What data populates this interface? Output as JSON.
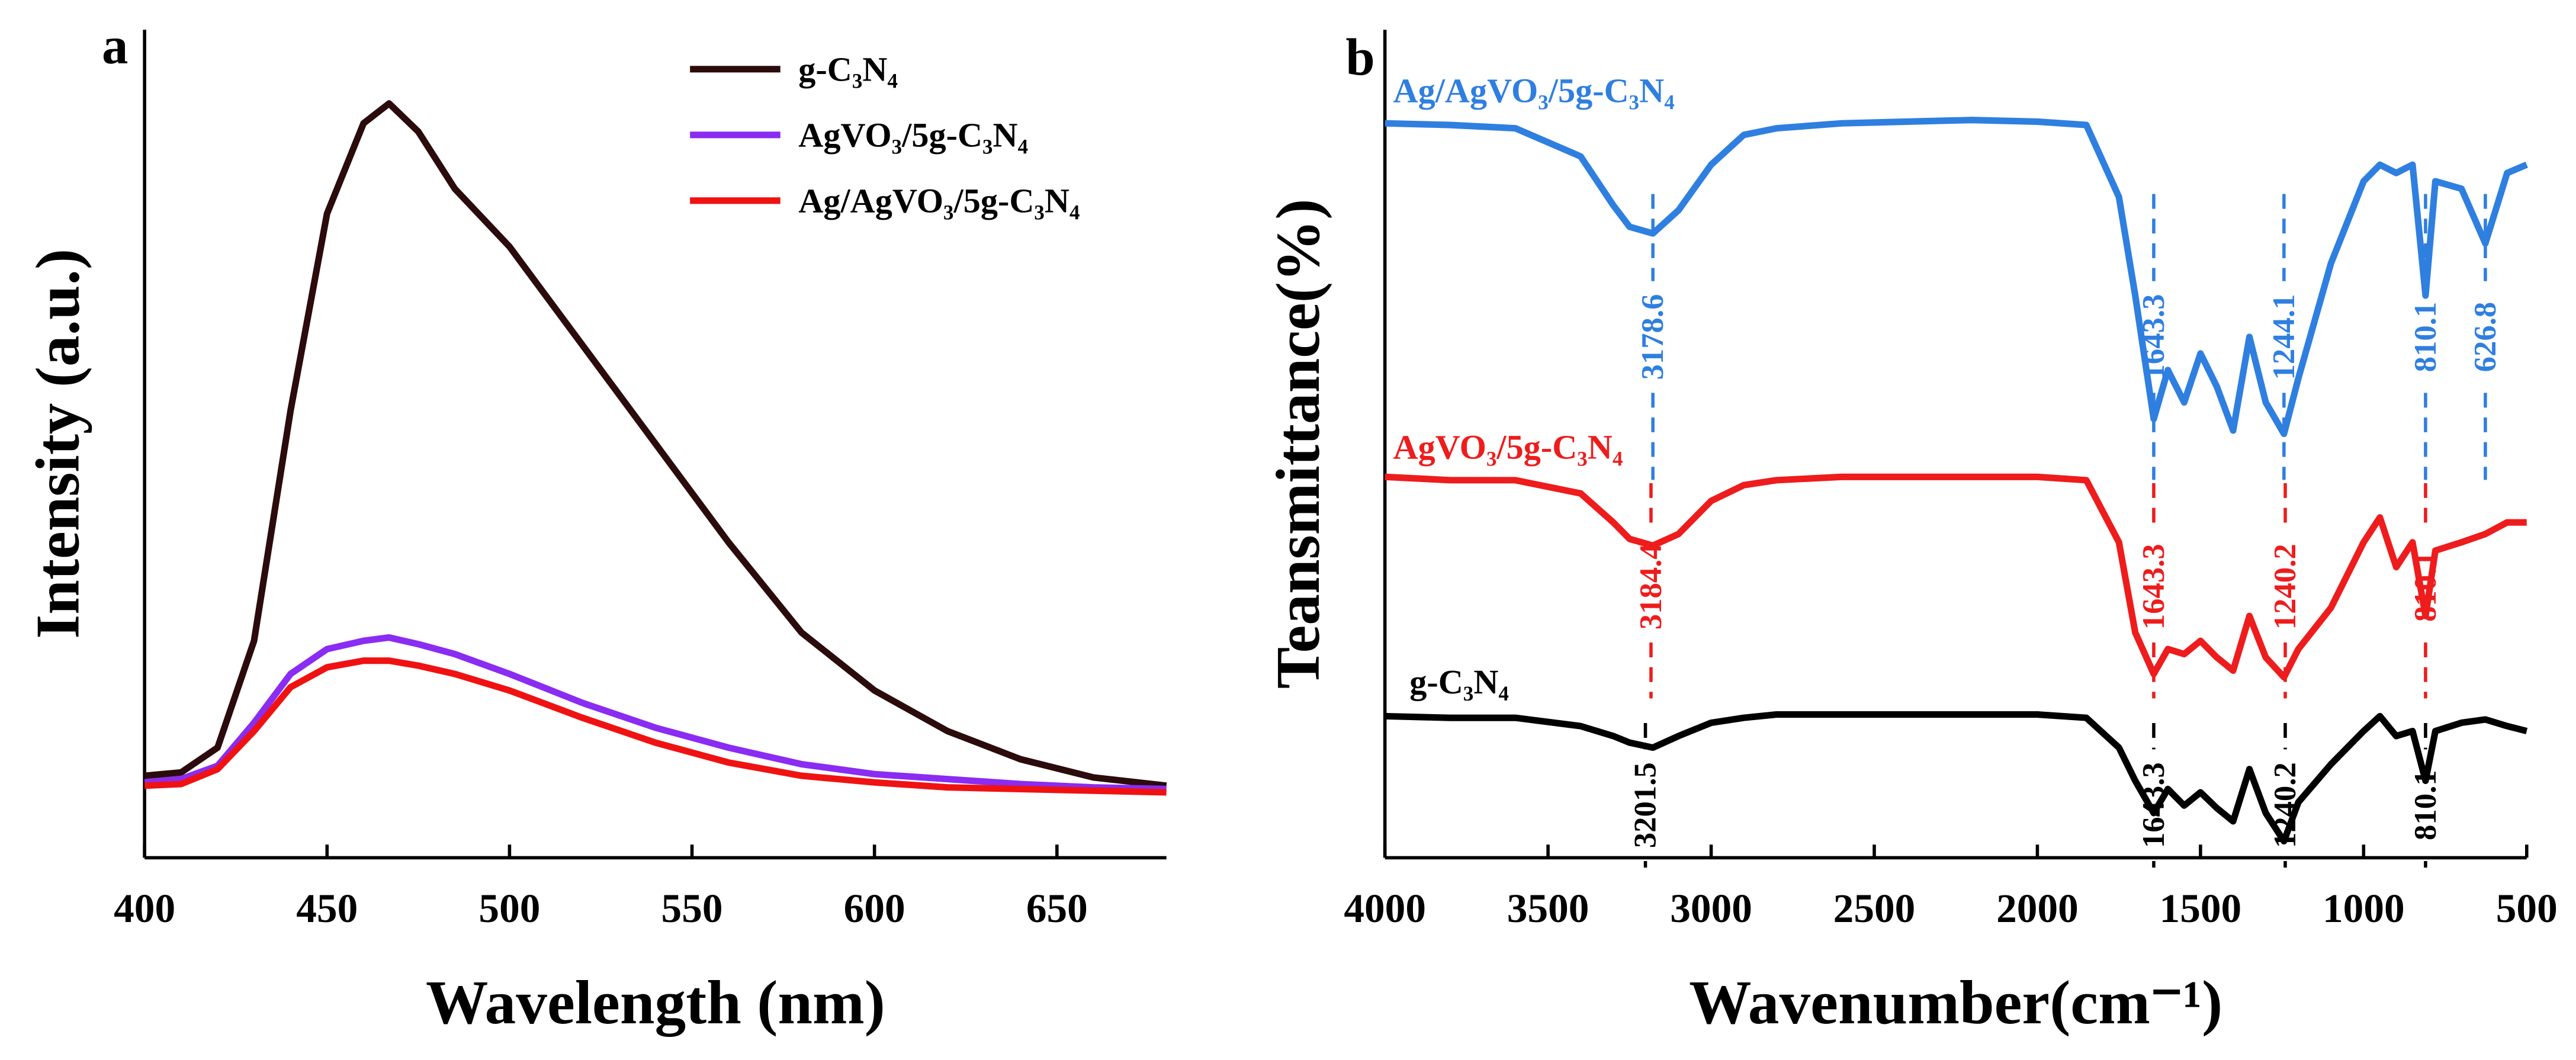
{
  "chart_data": [
    {
      "type": "line",
      "panel_label": "a",
      "x_label": "Wavelength (nm)",
      "y_label": "Intensity (a.u.)",
      "legend": "upper right",
      "x": [
        400,
        410,
        420,
        430,
        440,
        450,
        460,
        467,
        475,
        485,
        500,
        520,
        540,
        560,
        580,
        600,
        620,
        640,
        660,
        680
      ],
      "xlim": [
        400,
        680
      ],
      "xticks": [
        400,
        450,
        500,
        550,
        600,
        650
      ],
      "ylim": [
        0,
        100
      ],
      "series": [
        {
          "name": "g-C₃N₄",
          "color": "#2b0b0b",
          "values": [
            9.9,
            10.3,
            13.3,
            26.2,
            54.0,
            77.8,
            88.7,
            91.1,
            87.7,
            80.8,
            73.8,
            61.9,
            50.0,
            38.1,
            27.2,
            20.2,
            15.3,
            11.9,
            9.7,
            8.7
          ]
        },
        {
          "name": "AgVO₃/5g-C₃N₄",
          "color": "#8a2cf2",
          "values": [
            9.1,
            9.5,
            11.1,
            16.3,
            22.2,
            25.2,
            26.2,
            26.6,
            25.8,
            24.6,
            22.2,
            18.7,
            15.7,
            13.3,
            11.3,
            10.1,
            9.5,
            8.9,
            8.5,
            8.3
          ]
        },
        {
          "name": "Ag/AgVO₃/5g-C₃N₄",
          "color": "#f01212",
          "values": [
            8.7,
            8.9,
            10.7,
            15.3,
            20.6,
            23.0,
            23.8,
            23.8,
            23.2,
            22.2,
            20.2,
            16.9,
            13.9,
            11.5,
            9.9,
            9.1,
            8.5,
            8.3,
            8.1,
            7.9
          ]
        }
      ]
    },
    {
      "type": "line",
      "panel_label": "b",
      "x_label": "Wavenumber(cm⁻¹)",
      "y_label": "Teansmittance(%)",
      "legend": "inline",
      "x": [
        4000,
        3800,
        3600,
        3400,
        3300,
        3250,
        3178.6,
        3100,
        3000,
        2900,
        2800,
        2600,
        2400,
        2200,
        2000,
        1850,
        1750,
        1700,
        1643.3,
        1600,
        1550,
        1500,
        1450,
        1400,
        1350,
        1300,
        1244.1,
        1200,
        1100,
        1000,
        950,
        900,
        850,
        810.1,
        780,
        700,
        626.8,
        560,
        500
      ],
      "xlim": [
        4000,
        500
      ],
      "xticks": [
        4000,
        3500,
        3000,
        2500,
        2000,
        1500,
        1000,
        500
      ],
      "ylim": [
        0,
        100
      ],
      "series": [
        {
          "name": "Ag/AgVO₃/5g-C₃N₄",
          "color": "#2f7fe0",
          "annotations": [
            3178.6,
            1643.3,
            1244.1,
            810.1,
            626.8
          ],
          "values": [
            88.7,
            88.5,
            88.1,
            84.7,
            78.8,
            76.2,
            75.4,
            78.2,
            83.7,
            87.3,
            88.1,
            88.7,
            88.9,
            89.1,
            88.9,
            88.5,
            79.8,
            67.9,
            53.0,
            58.9,
            55.0,
            60.9,
            56.9,
            51.6,
            62.9,
            55.0,
            51.2,
            57.9,
            71.8,
            81.7,
            83.7,
            82.7,
            83.7,
            67.9,
            81.7,
            80.8,
            74.2,
            82.7,
            83.7
          ]
        },
        {
          "name": "AgVO₃/5g-C₃N₄",
          "color": "#ee1c1c",
          "annotations": [
            3184.4,
            1643.3,
            1240.2,
            810.1
          ],
          "values": [
            46.0,
            45.6,
            45.6,
            44.0,
            40.5,
            38.5,
            37.7,
            39.1,
            43.1,
            45.0,
            45.6,
            46.0,
            46.0,
            46.0,
            46.0,
            45.6,
            38.1,
            27.2,
            22.2,
            25.2,
            24.6,
            26.2,
            24.2,
            22.6,
            29.2,
            24.2,
            21.8,
            25.2,
            30.2,
            38.1,
            41.1,
            35.1,
            38.1,
            29.2,
            37.1,
            38.1,
            39.1,
            40.5,
            40.5
          ]
        },
        {
          "name": "g-C₃N₄",
          "color": "#000000",
          "annotations": [
            3201.5,
            1643.3,
            1240.2,
            810.1
          ],
          "values": [
            17.1,
            16.9,
            16.9,
            15.9,
            14.7,
            13.9,
            13.3,
            14.7,
            16.3,
            16.9,
            17.3,
            17.3,
            17.3,
            17.3,
            17.3,
            16.9,
            13.3,
            9.3,
            5.4,
            8.3,
            6.3,
            7.9,
            6.0,
            4.4,
            10.7,
            5.4,
            2.0,
            6.7,
            11.3,
            15.3,
            17.1,
            14.7,
            15.3,
            9.3,
            15.3,
            16.3,
            16.7,
            15.9,
            15.3
          ]
        }
      ]
    }
  ]
}
